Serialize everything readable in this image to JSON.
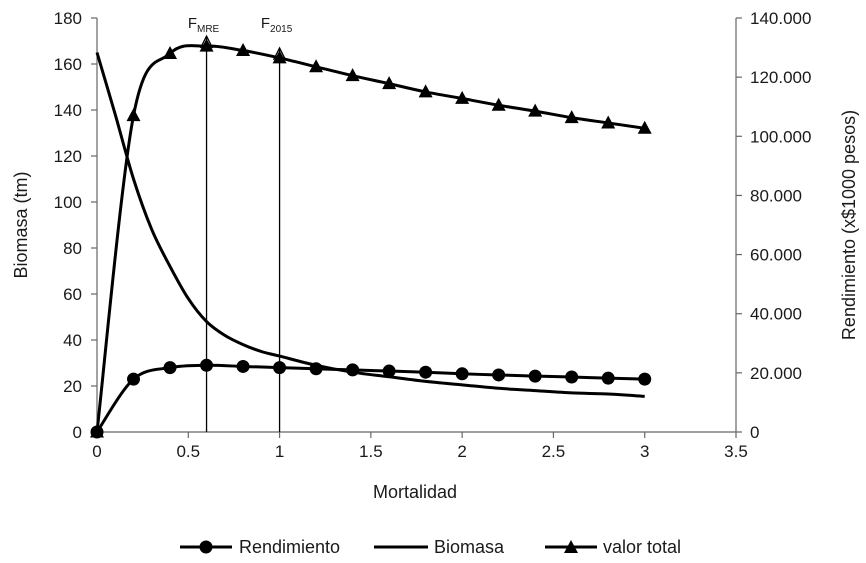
{
  "chart_data": {
    "type": "line",
    "xlabel": "Mortalidad",
    "ylabel": "Biomasa  (tm)",
    "y2label": "Rendimiento  (x$1000 pesos)",
    "xlim": [
      0,
      3.5
    ],
    "ylim": [
      0,
      180
    ],
    "y2lim": [
      0,
      140000
    ],
    "x_ticks": [
      "0",
      "0.5",
      "1",
      "1.5",
      "2",
      "2.5",
      "3",
      "3.5"
    ],
    "y_ticks": [
      "0",
      "20",
      "40",
      "60",
      "80",
      "100",
      "120",
      "140",
      "160",
      "180"
    ],
    "y2_ticks": [
      "0",
      "20.000",
      "40.000",
      "60.000",
      "80.000",
      "100.000",
      "120.000",
      "140.000"
    ],
    "grid": false,
    "legend_position": "bottom",
    "series": [
      {
        "name": "Rendimiento",
        "axis": "left",
        "marker": "circle",
        "color": "#000000",
        "x": [
          0,
          0.2,
          0.4,
          0.6,
          0.8,
          1.0,
          1.2,
          1.4,
          1.6,
          1.8,
          2.0,
          2.2,
          2.4,
          2.6,
          2.8,
          3.0
        ],
        "y": [
          0,
          23,
          28,
          29,
          28.5,
          28,
          27.5,
          27,
          26.5,
          26,
          25.3,
          24.8,
          24.3,
          23.9,
          23.4,
          23
        ]
      },
      {
        "name": "Biomasa",
        "axis": "left",
        "marker": "none",
        "color": "#000000",
        "x": [
          0,
          0.1,
          0.2,
          0.3,
          0.4,
          0.5,
          0.6,
          0.7,
          0.8,
          0.9,
          1.0,
          1.2,
          1.4,
          1.6,
          1.8,
          2.0,
          2.2,
          2.4,
          2.6,
          2.8,
          3.0
        ],
        "y": [
          165,
          138,
          110,
          88,
          72,
          58,
          48,
          42,
          38,
          35,
          33,
          29,
          26,
          24,
          22,
          20.5,
          19,
          18,
          17,
          16.5,
          15.5
        ]
      },
      {
        "name": "valor total",
        "axis": "right",
        "marker": "triangle",
        "color": "#000000",
        "x": [
          0,
          0.2,
          0.4,
          0.6,
          0.8,
          1.0,
          1.2,
          1.4,
          1.6,
          1.8,
          2.0,
          2.2,
          2.4,
          2.6,
          2.8,
          3.0
        ],
        "y": [
          0,
          107000,
          128000,
          130500,
          129000,
          126500,
          123500,
          120500,
          117800,
          115000,
          112800,
          110500,
          108500,
          106300,
          104500,
          102700
        ]
      }
    ],
    "annotations": [
      {
        "label": "F",
        "sub": "MRE",
        "x": 0.6
      },
      {
        "label": "F",
        "sub": "2015",
        "x": 1.0
      }
    ]
  }
}
